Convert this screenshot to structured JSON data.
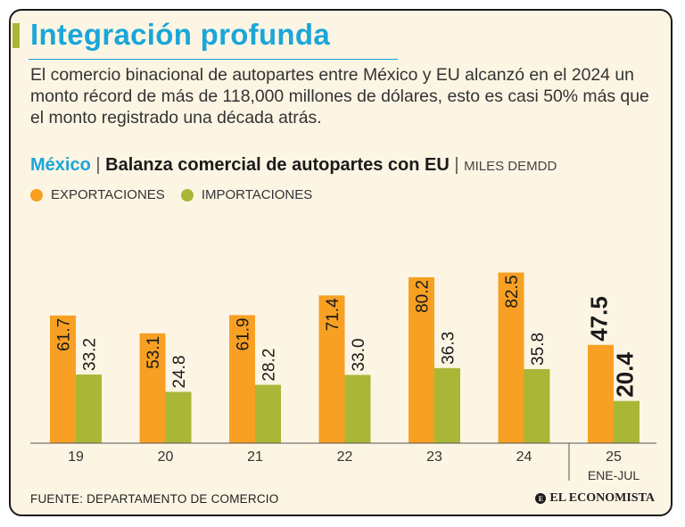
{
  "header": {
    "title": "Integración profunda",
    "intro": "El comercio binacional de autopartes entre México y EU alcanzó en el 2024 un monto récord de más de 118,000 millones de dólares, esto es casi 50% más que el monto registrado una década atrás."
  },
  "subtitle": {
    "country": "México",
    "separator": " | ",
    "main": "Balanza comercial de autopartes con EU",
    "unit": "MILES DEMDD"
  },
  "colors": {
    "exports": "#f7a023",
    "imports": "#a9b737",
    "title": "#1aa6d9"
  },
  "chart_data": {
    "type": "bar",
    "title": "Balanza comercial de autopartes con EU",
    "ylabel": "MILES DEMDD",
    "xlabel": "",
    "categories": [
      "19",
      "20",
      "21",
      "22",
      "23",
      "24",
      "25"
    ],
    "category_sub": [
      "",
      "",
      "",
      "",
      "",
      "",
      "ENE-JUL"
    ],
    "series": [
      {
        "name": "EXPORTACIONES",
        "values": [
          61.7,
          53.1,
          61.9,
          71.4,
          80.2,
          82.5,
          47.5
        ]
      },
      {
        "name": "IMPORTACIONES",
        "values": [
          33.2,
          24.8,
          28.2,
          33.0,
          36.3,
          35.8,
          20.4
        ]
      }
    ],
    "value_labels": [
      [
        "61.7",
        "53.1",
        "61.9",
        "71.4",
        "80.2",
        "82.5",
        "47.5"
      ],
      [
        "33.2",
        "24.8",
        "28.2",
        "33.0",
        "36.3",
        "35.8",
        "20.4"
      ]
    ],
    "ylim": [
      0,
      90
    ],
    "legend": "top-left",
    "grid": false
  },
  "footer": {
    "source": "FUENTE: DEPARTAMENTO DE COMERCIO",
    "brand": "EL ECONOMISTA",
    "brand_mark": "E"
  }
}
